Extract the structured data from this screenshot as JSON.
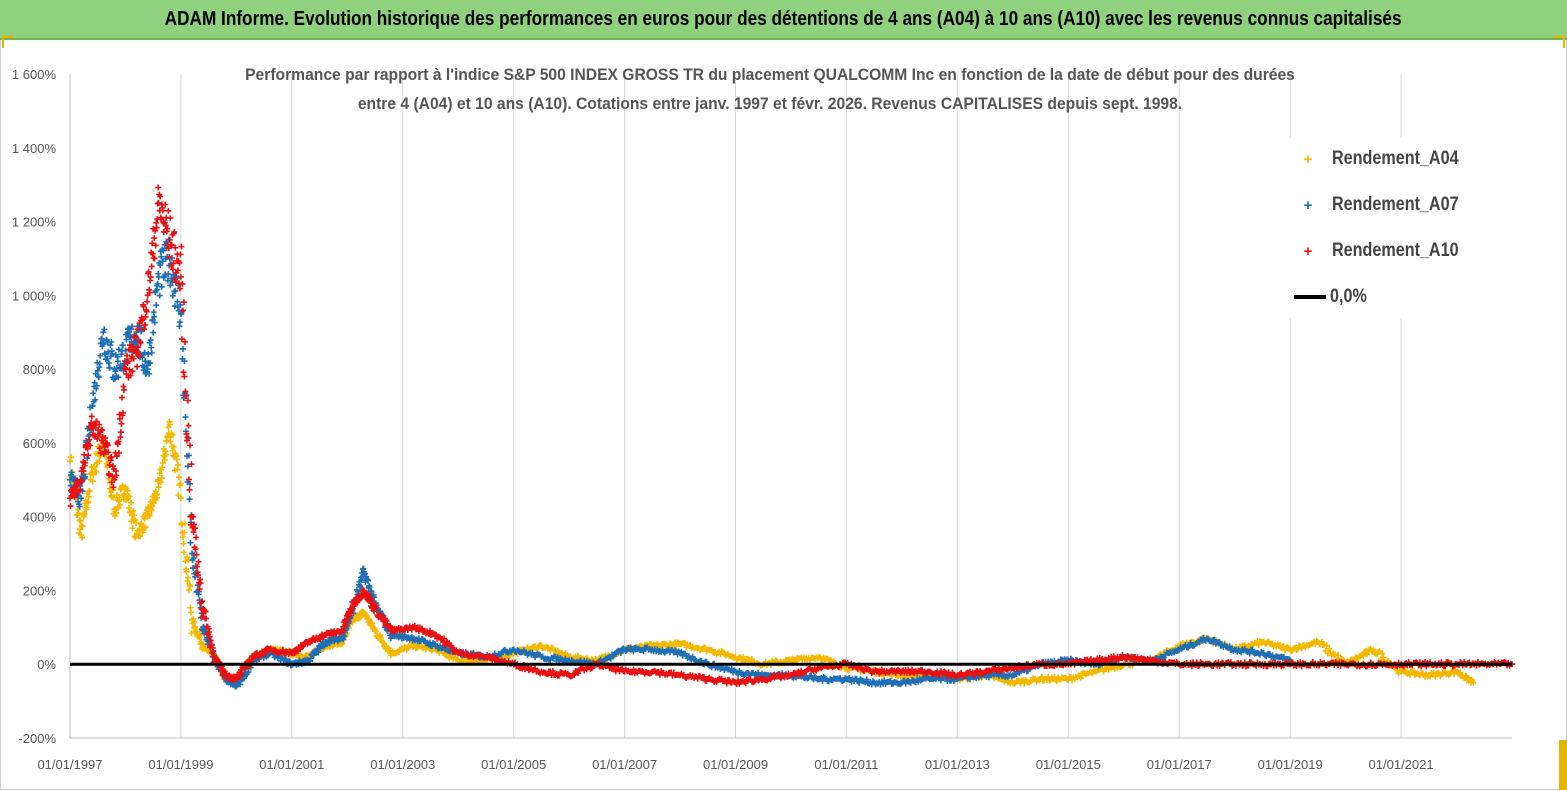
{
  "banner": {
    "title": "ADAM Informe. Evolution historique des performances en euros pour des détentions de 4 ans (A04) à 10 ans (A10) avec les revenus connus capitalisés"
  },
  "chart_data": {
    "type": "scatter",
    "title_line1": "Performance par rapport à l'indice S&P 500 INDEX GROSS TR  du placement QUALCOMM Inc en fonction de la date de début pour des durées",
    "title_line2": "entre 4 (A04) et 10 ans (A10). Cotations entre janv. 1997 et févr. 2026. Revenus CAPITALISES depuis sept. 1998.",
    "ylim": [
      -200,
      1600
    ],
    "y_ticks": [
      -200,
      0,
      200,
      400,
      600,
      800,
      1000,
      1200,
      1400,
      1600
    ],
    "y_tick_labels": [
      "-200%",
      "0%",
      "200%",
      "400%",
      "600%",
      "800%",
      "1 000%",
      "1 200%",
      "1 400%",
      "1 600%"
    ],
    "xlim": [
      1997.0,
      2023.0
    ],
    "x_ticks": [
      1997,
      1999,
      2001,
      2003,
      2005,
      2007,
      2009,
      2011,
      2013,
      2015,
      2017,
      2019,
      2021
    ],
    "x_tick_labels": [
      "01/01/1997",
      "01/01/1999",
      "01/01/2001",
      "01/01/2003",
      "01/01/2005",
      "01/01/2007",
      "01/01/2009",
      "01/01/2011",
      "01/01/2013",
      "01/01/2015",
      "01/01/2017",
      "01/01/2019",
      "01/01/2021"
    ],
    "grid": "vertical",
    "legend_position": "top-right",
    "series": [
      {
        "name": "Rendement_A04",
        "color": "#f5b800",
        "marker": "+",
        "x": [
          1997.0,
          1997.2,
          1997.4,
          1997.6,
          1997.8,
          1998.0,
          1998.2,
          1998.4,
          1998.6,
          1998.8,
          1999.0,
          1999.2,
          1999.4,
          1999.6,
          1999.8,
          2000.0,
          2000.3,
          2000.6,
          2001.0,
          2001.3,
          2001.6,
          2001.9,
          2002.1,
          2002.3,
          2002.5,
          2002.8,
          2003.2,
          2003.6,
          2004.0,
          2004.5,
          2005.0,
          2005.5,
          2006.0,
          2006.5,
          2007.0,
          2007.5,
          2008.0,
          2008.5,
          2009.0,
          2009.5,
          2010.0,
          2010.5,
          2011.0,
          2011.5,
          2012.0,
          2012.5,
          2013.0,
          2013.5,
          2014.0,
          2014.5,
          2015.0,
          2015.5,
          2016.0,
          2016.5,
          2017.0,
          2017.5,
          2018.0,
          2018.5,
          2019.0,
          2019.5,
          2020.0,
          2020.5,
          2021.0,
          2021.5,
          2022.0,
          2022.3
        ],
        "y": [
          550,
          350,
          520,
          600,
          420,
          480,
          350,
          400,
          480,
          650,
          450,
          120,
          50,
          20,
          -40,
          -50,
          20,
          40,
          30,
          20,
          50,
          60,
          120,
          140,
          90,
          30,
          50,
          40,
          10,
          10,
          30,
          50,
          20,
          10,
          40,
          50,
          55,
          40,
          20,
          0,
          10,
          20,
          -10,
          -20,
          -30,
          -30,
          -40,
          -30,
          -50,
          -40,
          -40,
          -20,
          0,
          10,
          50,
          70,
          40,
          60,
          40,
          60,
          0,
          40,
          -20,
          -30,
          -20,
          -50
        ]
      },
      {
        "name": "Rendement_A07",
        "color": "#1f6fb5",
        "marker": "+",
        "x": [
          1997.0,
          1997.2,
          1997.4,
          1997.6,
          1997.8,
          1998.0,
          1998.2,
          1998.4,
          1998.6,
          1998.8,
          1999.0,
          1999.2,
          1999.4,
          1999.6,
          1999.8,
          2000.0,
          2000.3,
          2000.6,
          2001.0,
          2001.3,
          2001.6,
          2001.9,
          2002.1,
          2002.3,
          2002.5,
          2002.8,
          2003.2,
          2003.6,
          2004.0,
          2004.5,
          2005.0,
          2005.5,
          2006.0,
          2006.5,
          2007.0,
          2007.5,
          2008.0,
          2008.5,
          2009.0,
          2009.5,
          2010.0,
          2010.5,
          2011.0,
          2011.5,
          2012.0,
          2012.5,
          2013.0,
          2013.5,
          2014.0,
          2014.5,
          2015.0,
          2015.5,
          2016.0,
          2016.5,
          2017.0,
          2017.5,
          2018.0,
          2018.5,
          2019.0
        ],
        "y": [
          500,
          450,
          700,
          900,
          800,
          850,
          900,
          800,
          1050,
          1100,
          950,
          300,
          100,
          20,
          -40,
          -60,
          10,
          30,
          0,
          10,
          60,
          70,
          150,
          250,
          160,
          80,
          70,
          50,
          30,
          20,
          40,
          20,
          10,
          0,
          40,
          40,
          30,
          0,
          -20,
          -30,
          -30,
          -40,
          -40,
          -50,
          -50,
          -40,
          -40,
          -30,
          -30,
          0,
          10,
          0,
          20,
          10,
          40,
          70,
          40,
          30,
          10
        ]
      },
      {
        "name": "Rendement_A10",
        "color": "#e81010",
        "marker": "+",
        "x": [
          1997.0,
          1997.2,
          1997.4,
          1997.6,
          1997.8,
          1998.0,
          1998.2,
          1998.4,
          1998.6,
          1998.8,
          1999.0,
          1999.2,
          1999.4,
          1999.6,
          1999.8,
          2000.0,
          2000.3,
          2000.6,
          2001.0,
          2001.3,
          2001.6,
          2001.9,
          2002.1,
          2002.3,
          2002.5,
          2002.8,
          2003.2,
          2003.6,
          2004.0,
          2004.5,
          2005.0,
          2005.5,
          2006.0,
          2006.5,
          2007.0,
          2007.5,
          2008.0,
          2008.5,
          2009.0,
          2009.5,
          2010.0,
          2010.5,
          2011.0,
          2011.5,
          2012.0,
          2012.5,
          2013.0,
          2013.5,
          2014.0,
          2014.5,
          2015.0,
          2015.5,
          2016.0,
          2016.5,
          2017.0,
          2017.5,
          2018.0,
          2018.5,
          2019.0,
          2019.5,
          2020.0,
          2020.5,
          2021.0,
          2021.5,
          2022.0,
          2022.5,
          2023.0
        ],
        "y": [
          450,
          500,
          650,
          600,
          500,
          800,
          850,
          1000,
          1250,
          1150,
          1050,
          400,
          150,
          20,
          -30,
          -40,
          20,
          40,
          30,
          60,
          80,
          90,
          160,
          200,
          150,
          90,
          100,
          80,
          30,
          20,
          0,
          -20,
          -30,
          0,
          -20,
          -20,
          -30,
          -40,
          -50,
          -40,
          -30,
          -10,
          0,
          -20,
          -20,
          -20,
          -30,
          -20,
          -10,
          0,
          0,
          10,
          20,
          10,
          0,
          0,
          0,
          0,
          0,
          0,
          0,
          0,
          0,
          0,
          0,
          0,
          0
        ]
      }
    ],
    "reference_line": {
      "name": "0,0%",
      "value": 0,
      "color": "#000000"
    }
  }
}
